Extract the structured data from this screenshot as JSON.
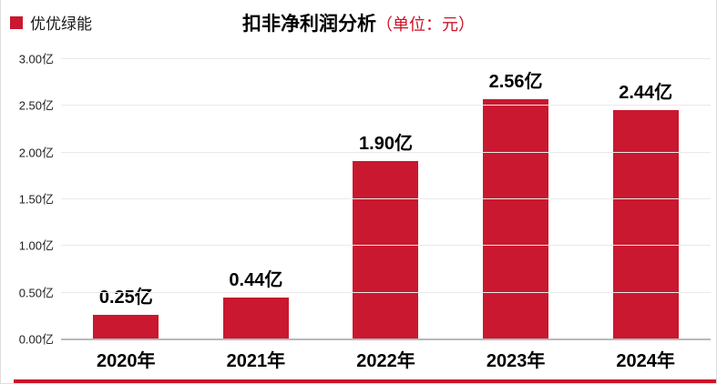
{
  "header": {
    "legend": {
      "label": "优优绿能"
    },
    "title": "扣非净利润分析",
    "title_suffix": "（单位：元）"
  },
  "colors": {
    "bar": "#C9182F",
    "accent_red": "#CE1126",
    "grid": "#e9e9e9"
  },
  "chart_data": {
    "type": "bar",
    "title": "扣非净利润分析",
    "subtitle": "（单位：元）",
    "categories": [
      "2020年",
      "2021年",
      "2022年",
      "2023年",
      "2024年"
    ],
    "series": [
      {
        "name": "优优绿能",
        "values": [
          0.25,
          0.44,
          1.9,
          2.56,
          2.44
        ]
      }
    ],
    "bar_labels": [
      "0.25亿",
      "0.44亿",
      "1.90亿",
      "2.56亿",
      "2.44亿"
    ],
    "yticks": [
      "3.00亿",
      "2.50亿",
      "2.00亿",
      "1.50亿",
      "1.00亿",
      "0.50亿",
      "0.00亿"
    ],
    "ylim": [
      0,
      3
    ],
    "unit": "亿",
    "grid": true,
    "legend_position": "top-left",
    "bar_color_hex": "#C9182F"
  }
}
